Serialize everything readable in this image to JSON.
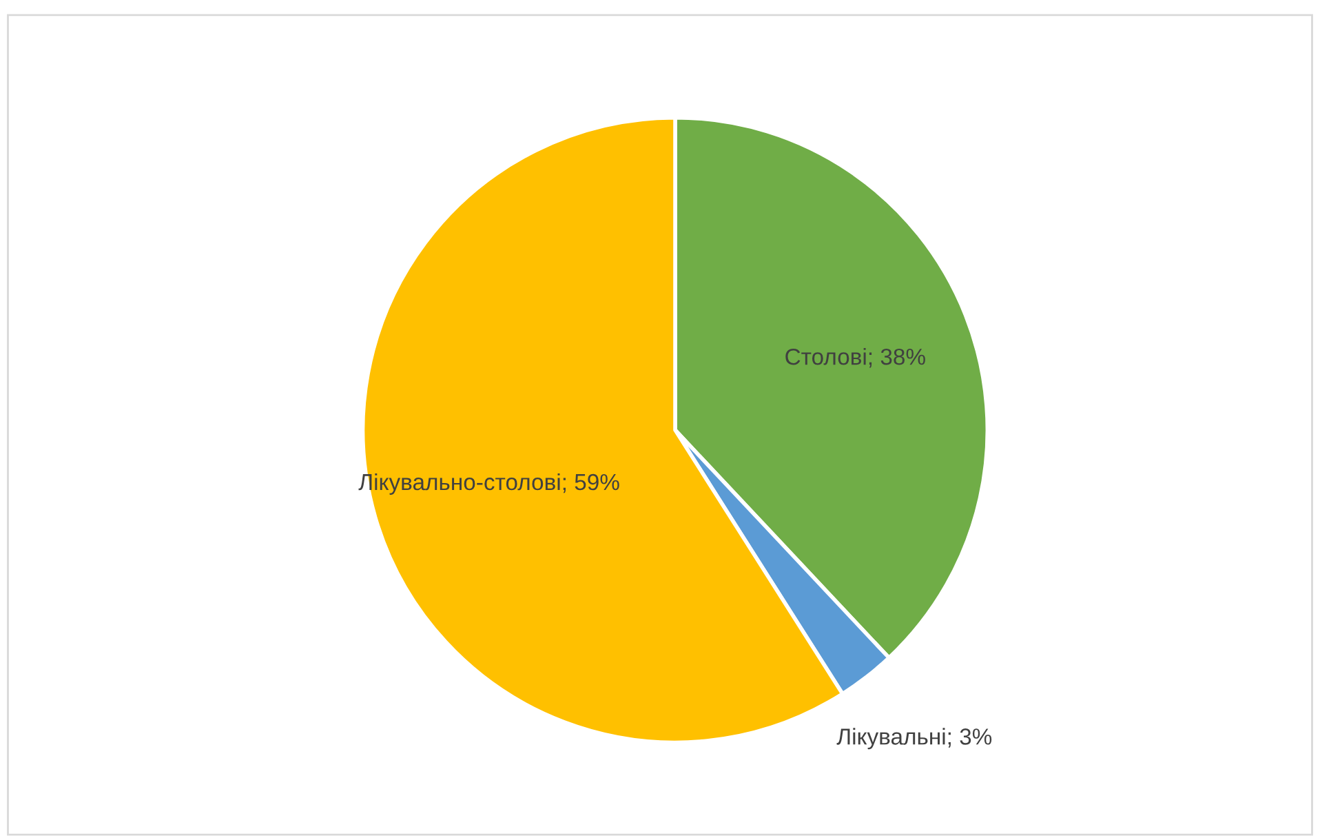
{
  "chart_data": {
    "type": "pie",
    "categories": [
      "Столові",
      "Лікувальні",
      "Лікувально-столові"
    ],
    "values": [
      38,
      3,
      59
    ],
    "value_labels": [
      "38%",
      "3%",
      "59%"
    ],
    "colors": [
      "#70ad47",
      "#5b9bd5",
      "#ffc000"
    ],
    "legend": false
  }
}
